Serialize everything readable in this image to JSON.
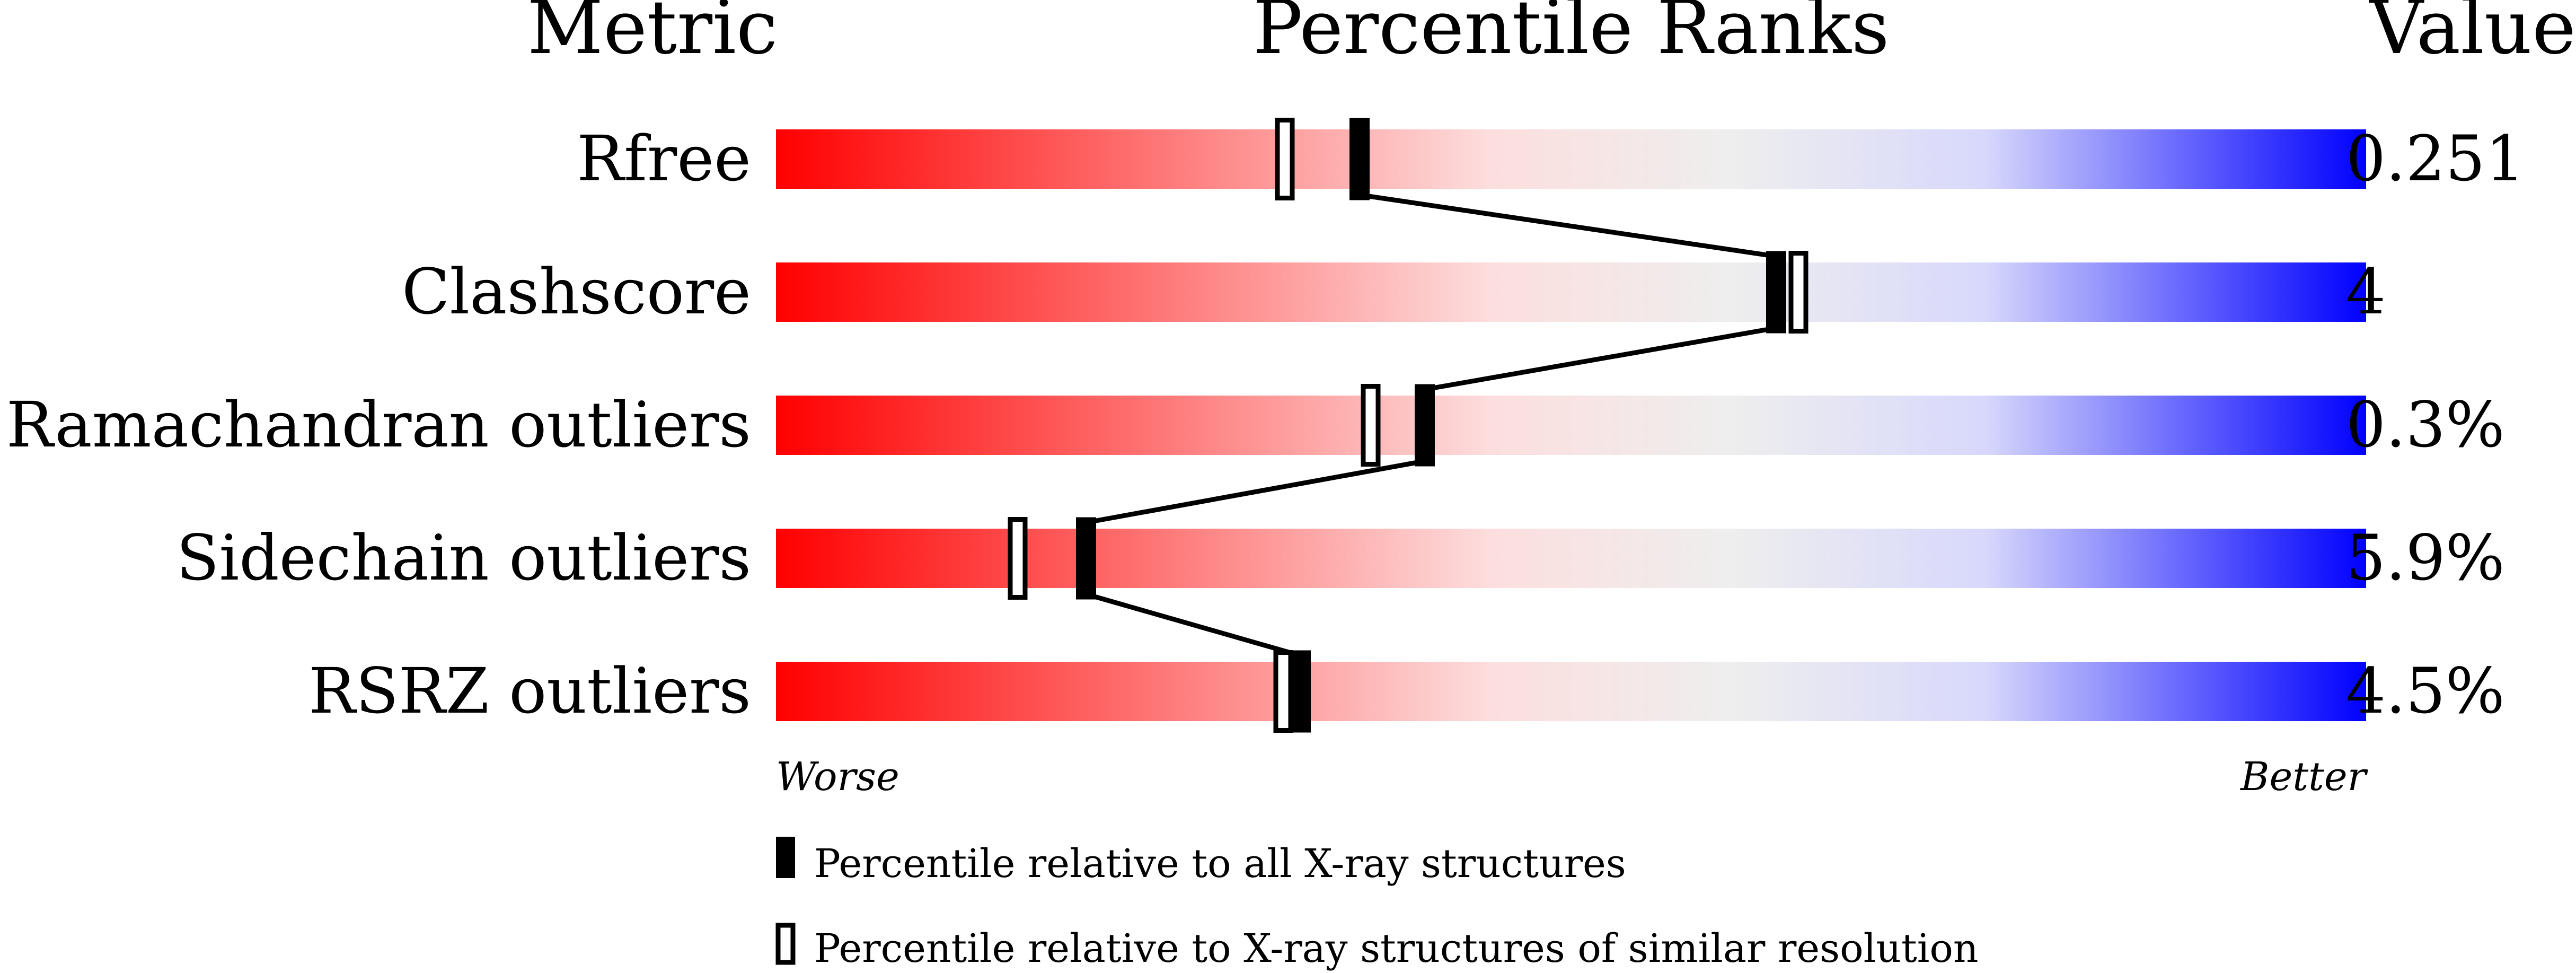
{
  "chart_data": {
    "type": "percentile-rank-slider",
    "headers": {
      "metric": "Metric",
      "ranks": "Percentile Ranks",
      "value": "Value"
    },
    "xlim": [
      0,
      100
    ],
    "axis_labels": {
      "left": "Worse",
      "right": "Better"
    },
    "gradient_colors": [
      "#ff0000",
      "#fddede",
      "#eeeeee",
      "#d8d8fc",
      "#0000ff"
    ],
    "metrics": [
      {
        "name": "Rfree",
        "value": "0.251",
        "percentile_all": 36.7,
        "percentile_similar": 32.0
      },
      {
        "name": "Clashscore",
        "value": "4",
        "percentile_all": 62.9,
        "percentile_similar": 64.3
      },
      {
        "name": "Ramachandran outliers",
        "value": "0.3%",
        "percentile_all": 40.8,
        "percentile_similar": 37.4
      },
      {
        "name": "Sidechain outliers",
        "value": "5.9%",
        "percentile_all": 19.5,
        "percentile_similar": 15.2
      },
      {
        "name": "RSRZ outliers",
        "value": "4.5%",
        "percentile_all": 33.0,
        "percentile_similar": 31.9
      }
    ],
    "legend": [
      {
        "marker": "filled",
        "label": "Percentile relative to all X-ray structures"
      },
      {
        "marker": "open",
        "label": "Percentile relative to X-ray structures of similar resolution"
      }
    ]
  }
}
